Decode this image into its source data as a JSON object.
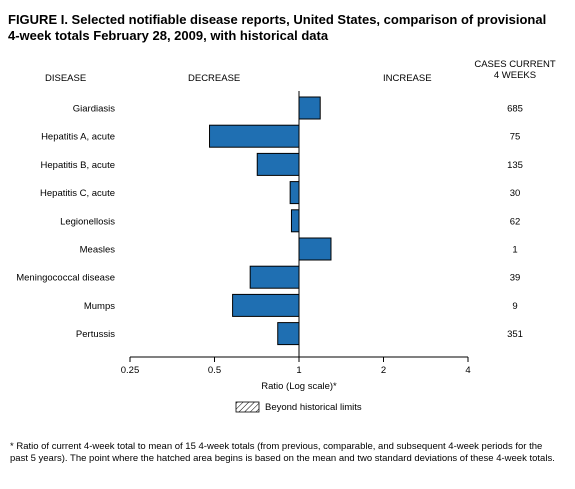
{
  "figure": {
    "title_line1": "FIGURE I. Selected notifiable disease reports, United States, comparison of provisional",
    "title_line2": "4-week totals February 28, 2009, with historical data"
  },
  "headers": {
    "disease": "DISEASE",
    "decrease": "DECREASE",
    "increase": "INCREASE",
    "cases_line1": "CASES CURRENT",
    "cases_line2": "4 WEEKS"
  },
  "legend": {
    "hatched_label": "Beyond historical limits"
  },
  "footnote": "* Ratio of current 4-week total to mean of 15 4-week totals (from previous, comparable, and subsequent 4-week periods for the past 5 years). The point where the hatched area begins is based on the mean and two standard deviations of these 4-week totals.",
  "colors": {
    "bar_fill": "#1f6fb2",
    "bar_stroke": "#000000"
  },
  "chart_data": {
    "type": "bar",
    "orientation": "horizontal",
    "xlabel": "Ratio (Log scale)*",
    "xscale": "log",
    "xlim": [
      0.25,
      4
    ],
    "baseline": 1,
    "xticks": [
      0.25,
      0.5,
      1,
      2,
      4
    ],
    "xtick_labels": [
      "0.25",
      "0.5",
      "1",
      "2",
      "4"
    ],
    "categories": [
      "Giardiasis",
      "Hepatitis A, acute",
      "Hepatitis B, acute",
      "Hepatitis C, acute",
      "Legionellosis",
      "Measles",
      "Meningococcal disease",
      "Mumps",
      "Pertussis"
    ],
    "values": [
      1.19,
      0.48,
      0.71,
      0.93,
      0.94,
      1.3,
      0.67,
      0.58,
      0.84
    ],
    "cases_current_4_weeks": [
      "685",
      "75",
      "135",
      "30",
      "62",
      "1",
      "39",
      "9",
      "351"
    ],
    "grid": false
  }
}
